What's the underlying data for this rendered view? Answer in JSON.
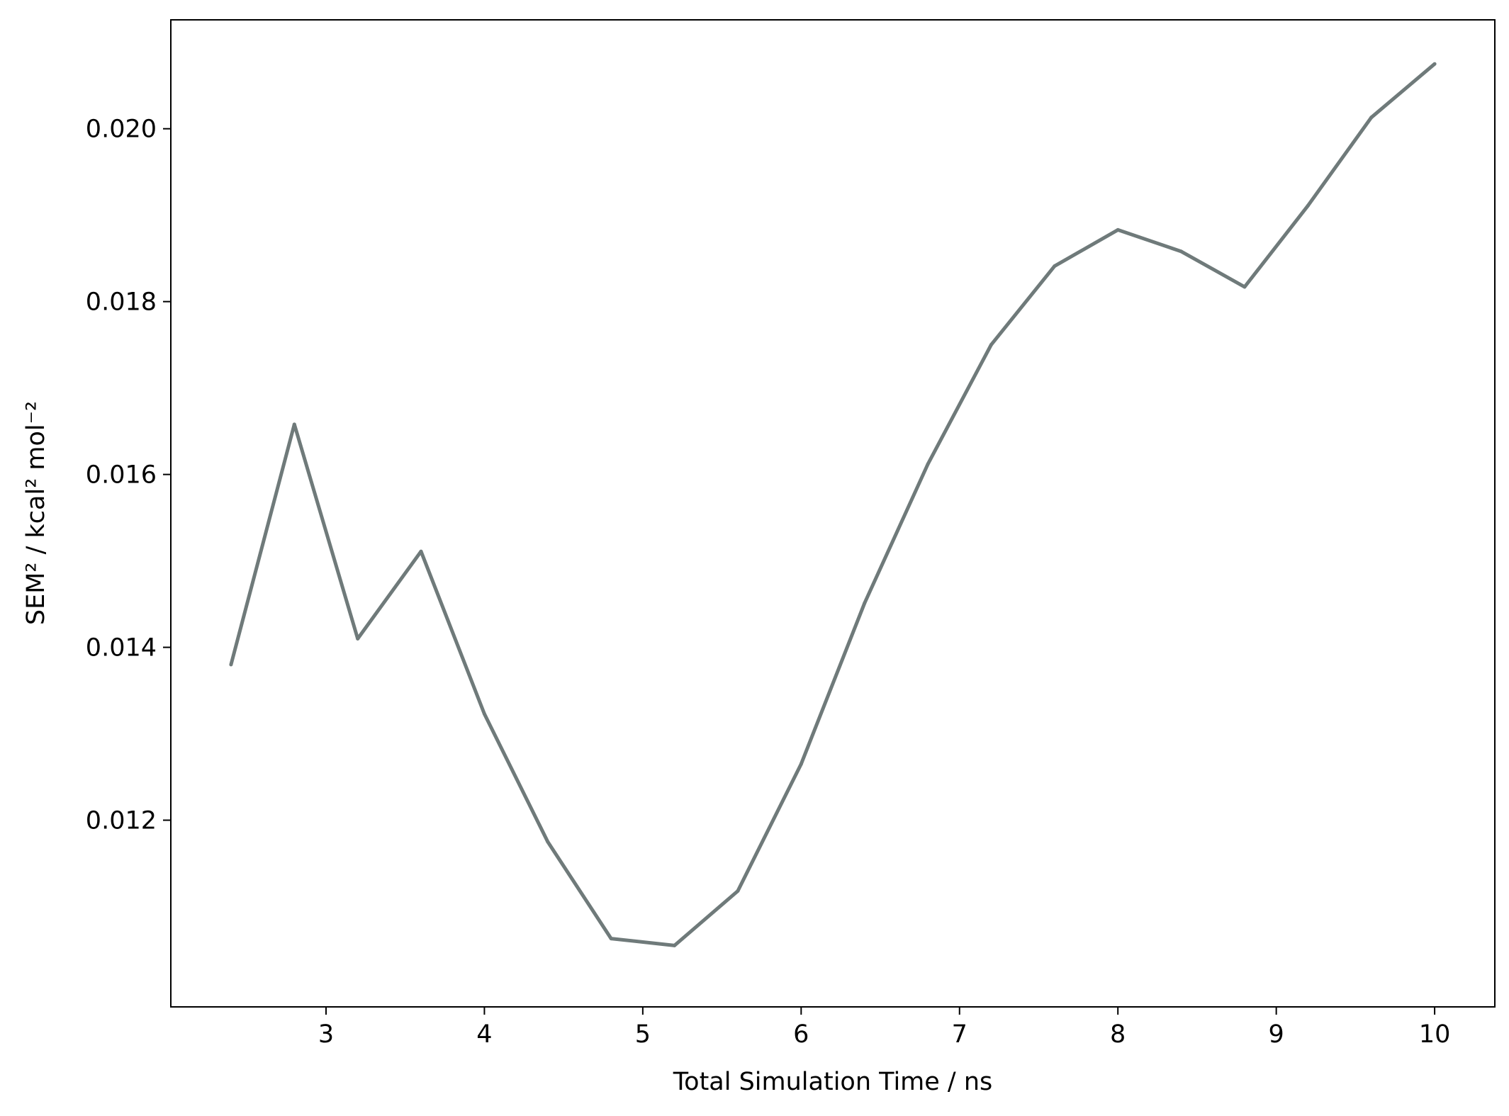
{
  "chart_data": {
    "type": "line",
    "title": "",
    "xlabel": "Total Simulation Time / ns",
    "ylabel": "SEM² / kcal² mol⁻²",
    "xlim": [
      2.02,
      10.38
    ],
    "ylim": [
      0.00984,
      0.02126
    ],
    "xticks": [
      3,
      4,
      5,
      6,
      7,
      8,
      9,
      10
    ],
    "xtick_labels": [
      "3",
      "4",
      "5",
      "6",
      "7",
      "8",
      "9",
      "10"
    ],
    "yticks": [
      0.012,
      0.014,
      0.016,
      0.018,
      0.02
    ],
    "ytick_labels": [
      "0.012",
      "0.014",
      "0.016",
      "0.018",
      "0.020"
    ],
    "grid": false,
    "legend": "none",
    "line_color": "#6f7a7a",
    "series": [
      {
        "x": [
          2.4,
          2.8,
          3.2,
          3.6,
          4.0,
          4.4,
          4.8,
          5.2,
          5.6,
          6.0,
          6.4,
          6.8,
          7.2,
          7.6,
          8.0,
          8.4,
          8.8,
          9.2,
          9.6,
          10.0
        ],
        "values": [
          0.0138,
          0.01658,
          0.0141,
          0.01511,
          0.01323,
          0.01175,
          0.01063,
          0.01055,
          0.01118,
          0.01265,
          0.01451,
          0.01612,
          0.0175,
          0.01841,
          0.01883,
          0.01858,
          0.01817,
          0.01911,
          0.02013,
          0.02075
        ]
      }
    ]
  }
}
